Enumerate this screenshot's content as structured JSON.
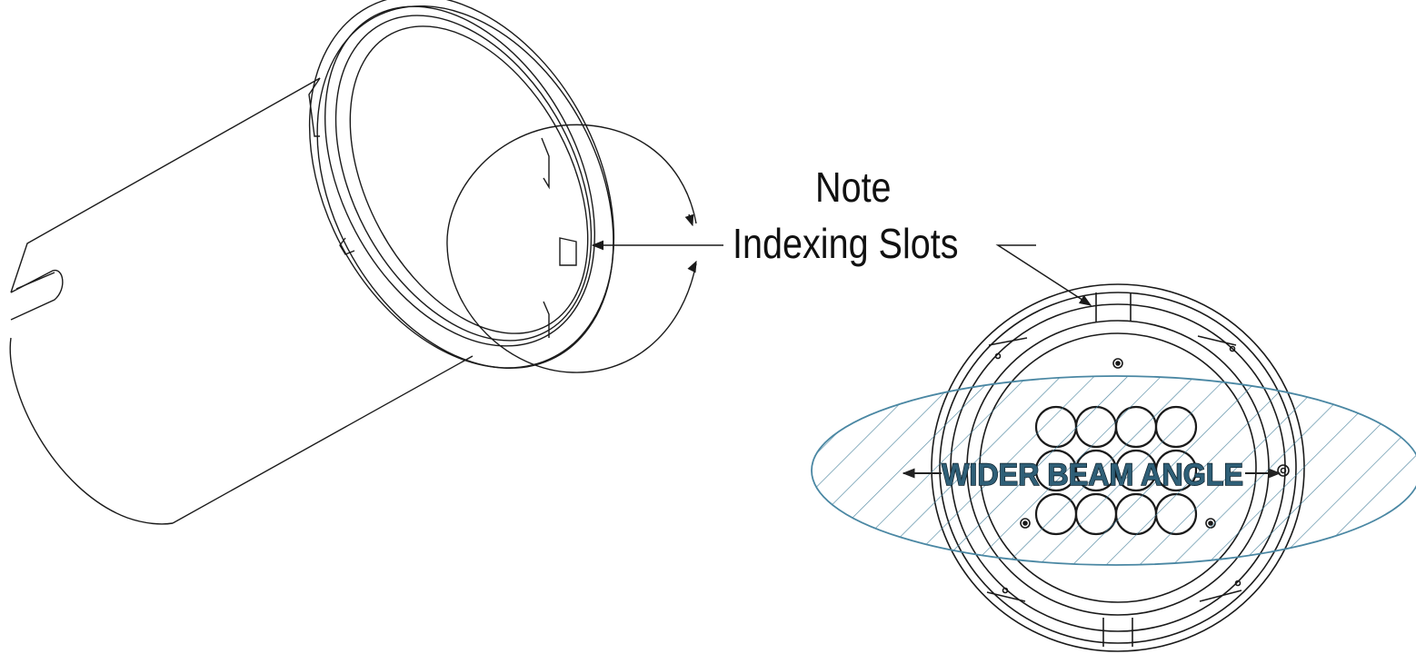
{
  "callout": {
    "line1": "Note",
    "line2": "Indexing Slots"
  },
  "beam_label": "WIDER BEAM ANGLE",
  "colors": {
    "ink": "#1a1a1a",
    "beam_fill": "#2f5f77",
    "beam_outline": "#4a87a3",
    "hatch": "#3d7a96"
  },
  "icons": {
    "left_arrow": "arrow-left-icon",
    "right_arrow": "arrow-right-icon"
  }
}
